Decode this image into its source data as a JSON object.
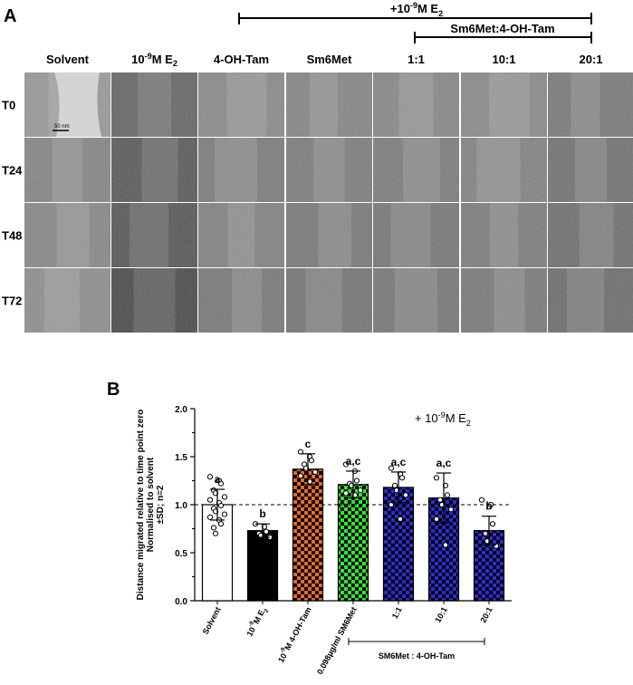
{
  "panel_a": {
    "label": "A",
    "bracket_e2": {
      "prefix": "+10",
      "exp": "-9",
      "mid": "M E",
      "sub": "2"
    },
    "bracket_ratio": "Sm6Met:4-OH-Tam",
    "columns": [
      {
        "text": "Solvent"
      },
      {
        "pre": "10",
        "exp": "-9",
        "mid": "M E",
        "sub": "2"
      },
      {
        "text": "4-OH-Tam"
      },
      {
        "text": "Sm6Met"
      },
      {
        "text": "1:1"
      },
      {
        "text": "10:1"
      },
      {
        "text": "20:1"
      }
    ],
    "rows": [
      "T0",
      "T24",
      "T48",
      "T72"
    ],
    "scale_bar": "50 nm"
  },
  "panel_b": {
    "label": "B",
    "annotation": {
      "prefix": "+ 10",
      "exp": "-9",
      "mid": "M E",
      "sub": "2"
    },
    "group_label": "SM6Met : 4-OH-Tam"
  },
  "chart_data": {
    "type": "bar",
    "ylabel_lines": [
      "Distance migrated relative to time point zero",
      "Normalised to solvent",
      "±SD; n=2"
    ],
    "ylim": [
      0,
      2.0
    ],
    "yticks": [
      "0.0",
      "0.5",
      "1.0",
      "1.5",
      "2.0"
    ],
    "reference_line": 1.0,
    "categories": [
      {
        "text": "Solvent"
      },
      {
        "pre": "10",
        "exp": "-9",
        "mid": "M E",
        "sub": "2"
      },
      {
        "pre": "10",
        "exp": "-9",
        "mid": "M 4-OH-Tam"
      },
      {
        "text": "0.098µg/ml SM6Met"
      },
      {
        "text": "1:1"
      },
      {
        "text": "10:1"
      },
      {
        "text": "20:1"
      }
    ],
    "values": [
      1.0,
      0.73,
      1.37,
      1.21,
      1.18,
      1.07,
      0.73
    ],
    "errors": [
      0.16,
      0.07,
      0.16,
      0.14,
      0.16,
      0.26,
      0.15
    ],
    "significance": [
      "a",
      "b",
      "c",
      "a,c",
      "a,c",
      "a,c",
      "b"
    ],
    "points": [
      [
        1.29,
        1.25,
        1.22,
        1.15,
        1.12,
        1.08,
        1.05,
        1.02,
        0.99,
        0.96,
        0.93,
        0.9,
        0.87,
        0.84,
        0.8,
        0.76,
        0.7
      ],
      [
        0.8,
        0.77,
        0.72,
        0.7,
        0.68,
        0.66
      ],
      [
        1.55,
        1.5,
        1.46,
        1.42,
        1.38,
        1.34,
        1.3,
        1.24
      ],
      [
        1.42,
        1.35,
        1.25,
        1.22,
        1.2,
        1.15,
        1.12,
        1.1
      ],
      [
        1.38,
        1.32,
        1.28,
        1.2,
        1.15,
        1.1,
        1.0,
        0.85
      ],
      [
        1.28,
        1.2,
        1.1,
        1.05,
        1.0,
        0.95,
        0.85,
        0.58
      ],
      [
        1.05,
        1.0,
        0.8,
        0.7,
        0.62,
        0.57
      ]
    ],
    "colors": [
      "#ffffff",
      "#000000",
      "#f06a20",
      "#2ee82e",
      "#2c2cd8",
      "#2c2cd8",
      "#2c2cd8"
    ],
    "patterns": [
      "none",
      "none",
      "checker",
      "checker",
      "checker",
      "checker",
      "checker"
    ]
  }
}
